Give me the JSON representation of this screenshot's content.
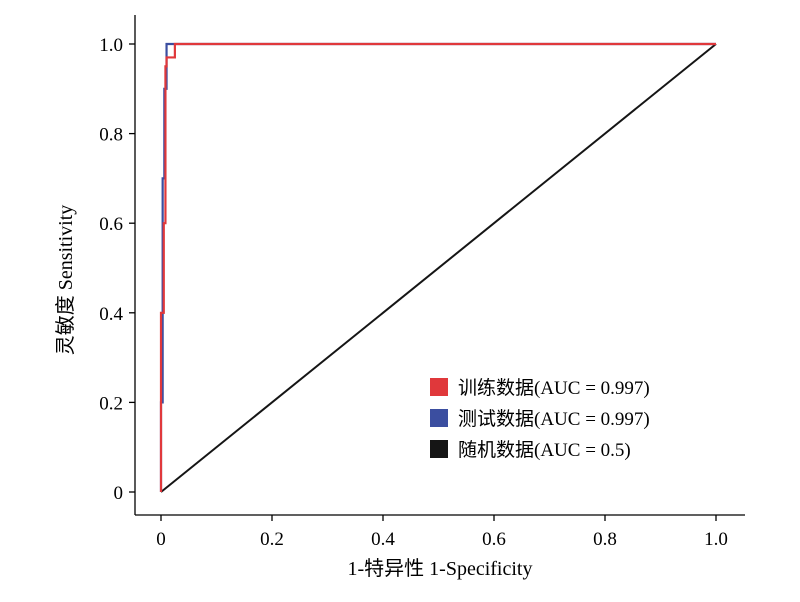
{
  "chart_data": {
    "type": "line",
    "xlabel": "1-特异性 1-Specificity",
    "ylabel": "灵敏度 Sensitivity",
    "xlim": [
      0,
      1
    ],
    "ylim": [
      0,
      1
    ],
    "x_ticks": [
      {
        "value": 0,
        "label": "0"
      },
      {
        "value": 0.2,
        "label": "0.2"
      },
      {
        "value": 0.4,
        "label": "0.4"
      },
      {
        "value": 0.6,
        "label": "0.6"
      },
      {
        "value": 0.8,
        "label": "0.8"
      },
      {
        "value": 1.0,
        "label": "1.0"
      }
    ],
    "y_ticks": [
      {
        "value": 0,
        "label": "0"
      },
      {
        "value": 0.2,
        "label": "0.2"
      },
      {
        "value": 0.4,
        "label": "0.4"
      },
      {
        "value": 0.6,
        "label": "0.6"
      },
      {
        "value": 0.8,
        "label": "0.8"
      },
      {
        "value": 1.0,
        "label": "1.0"
      }
    ],
    "grid": false,
    "legend_position": "bottom-right",
    "series": [
      {
        "name": "训练数据(AUC = 0.997)",
        "color": "#e0383b",
        "x": [
          0,
          0,
          0.005,
          0.005,
          0.008,
          0.008,
          0.01,
          0.01,
          0.015,
          0.025,
          0.025,
          1.0
        ],
        "y": [
          0,
          0.4,
          0.4,
          0.6,
          0.6,
          0.95,
          0.95,
          0.97,
          0.97,
          0.97,
          1.0,
          1.0
        ]
      },
      {
        "name": "测试数据(AUC = 0.997)",
        "color": "#3b4ea0",
        "x": [
          0,
          0,
          0.003,
          0.003,
          0.006,
          0.006,
          0.01,
          0.01,
          1.0
        ],
        "y": [
          0,
          0.2,
          0.2,
          0.7,
          0.7,
          0.9,
          0.9,
          1.0,
          1.0
        ]
      },
      {
        "name": "随机数据(AUC = 0.5)",
        "color": "#151515",
        "x": [
          0,
          1.0
        ],
        "y": [
          0,
          1.0
        ]
      }
    ]
  }
}
